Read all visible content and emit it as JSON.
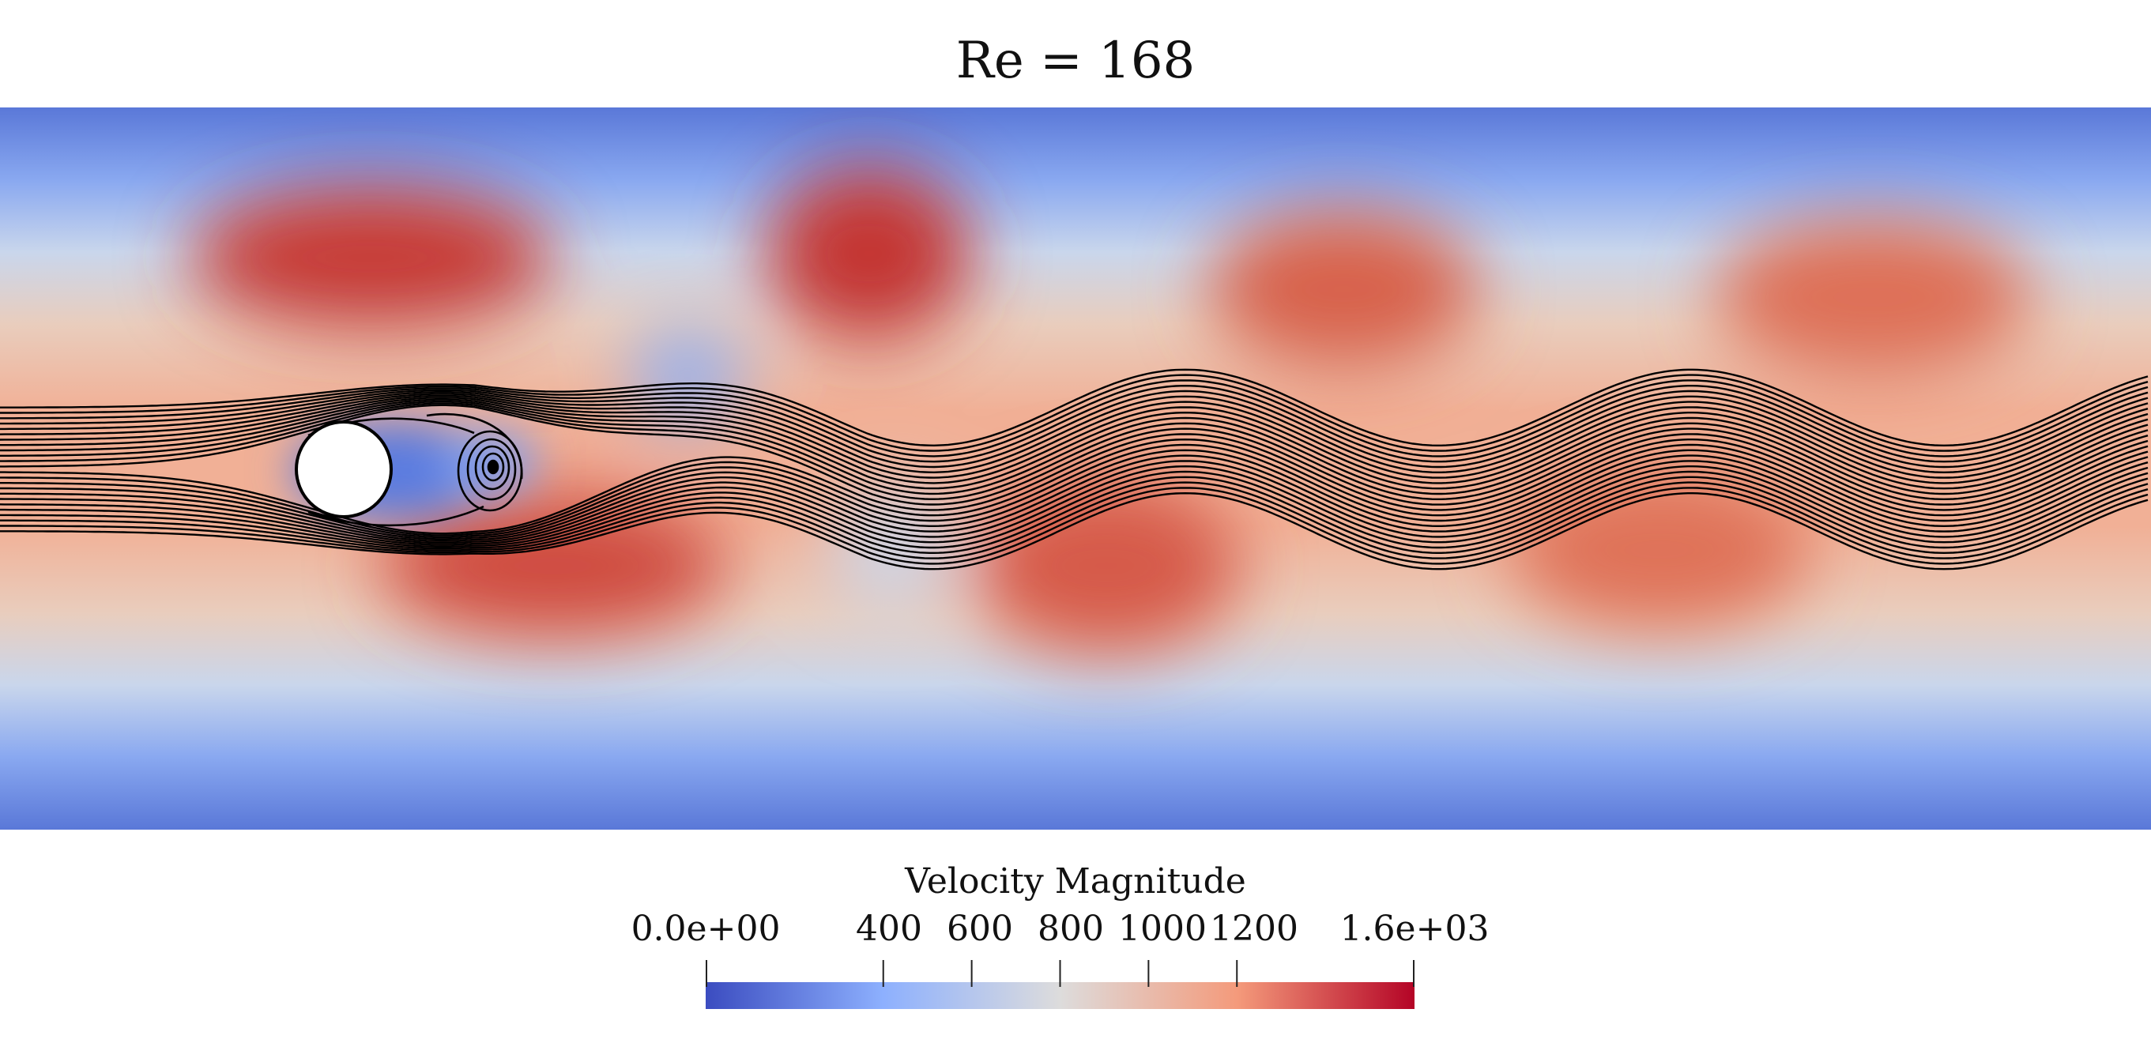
{
  "title": "Re = 168",
  "field": {
    "type": "flow_visualization",
    "variable": "Velocity Magnitude",
    "streamlines": "black",
    "obstacle": "circular cylinder"
  },
  "colorbar": {
    "title": "Velocity Magnitude",
    "min": 0,
    "max": 1600,
    "min_label": "0.0e+00",
    "max_label": "1.6e+03",
    "ticks": [
      {
        "value": 400,
        "label": "400"
      },
      {
        "value": 600,
        "label": "600"
      },
      {
        "value": 800,
        "label": "800"
      },
      {
        "value": 1000,
        "label": "1000"
      },
      {
        "value": 1200,
        "label": "1200"
      }
    ],
    "colors": [
      "#3b4cc0",
      "#8db0fe",
      "#dddcdc",
      "#f49a7b",
      "#b40426"
    ]
  }
}
